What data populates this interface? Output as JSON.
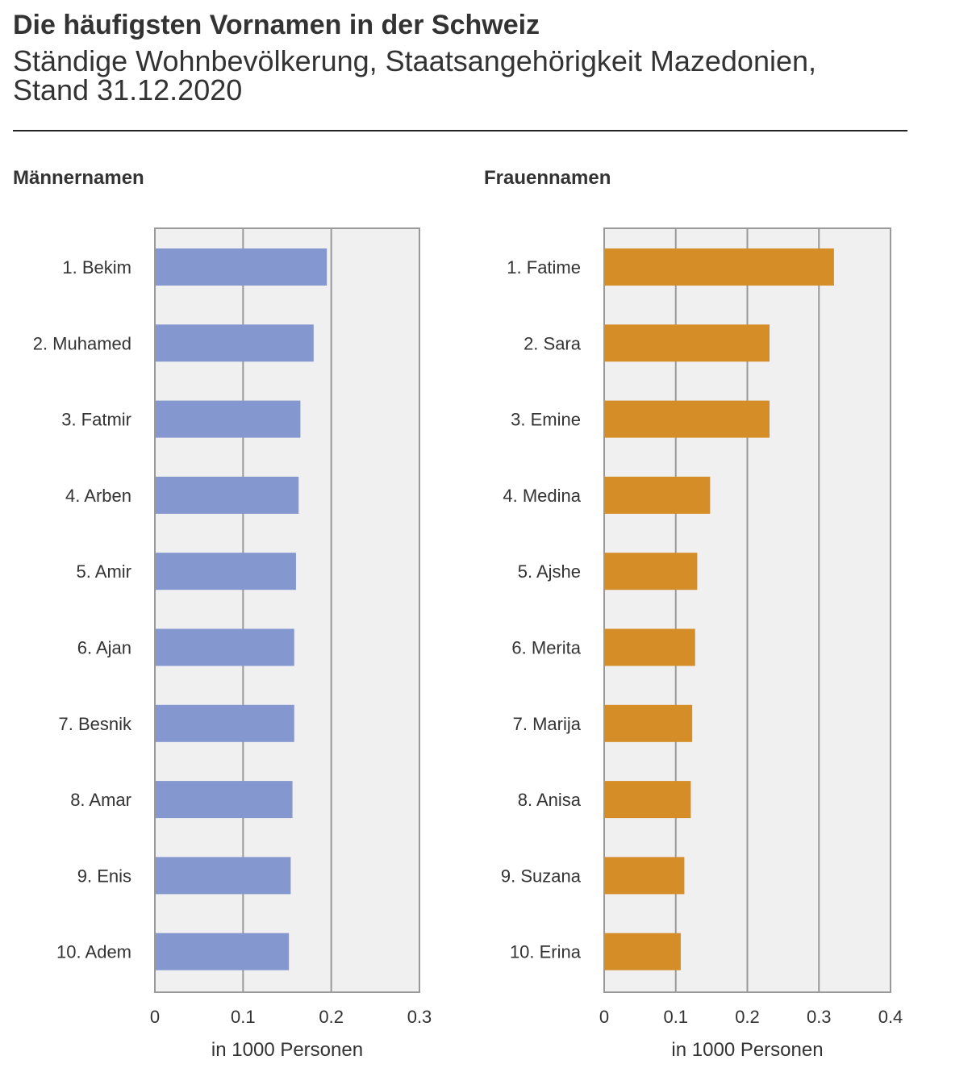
{
  "title": "Die häufigsten Vornamen in der Schweiz",
  "subtitle": "Ständige Wohnbevölkerung, Staatsangehörigkeit Mazedonien, Stand 31.12.2020",
  "chart_data": [
    {
      "type": "bar",
      "orientation": "horizontal",
      "title": "Männernamen",
      "categories": [
        "1. Bekim",
        "2. Muhamed",
        "3. Fatmir",
        "4. Arben",
        "5. Amir",
        "6. Ajan",
        "7. Besnik",
        "8. Amar",
        "9. Enis",
        "10. Adem"
      ],
      "values": [
        0.195,
        0.18,
        0.165,
        0.163,
        0.16,
        0.158,
        0.158,
        0.156,
        0.154,
        0.152
      ],
      "xlabel": "in 1000 Personen",
      "xlim": [
        0,
        0.3
      ],
      "xticks": [
        "0",
        "0.1",
        "0.2",
        "0.3"
      ],
      "grid": true,
      "color": "#8497cf"
    },
    {
      "type": "bar",
      "orientation": "horizontal",
      "title": "Frauennamen",
      "categories": [
        "1. Fatime",
        "2. Sara",
        "3. Emine",
        "4. Medina",
        "5. Ajshe",
        "6. Merita",
        "7. Marija",
        "8. Anisa",
        "9. Suzana",
        "10. Erina"
      ],
      "values": [
        0.321,
        0.231,
        0.231,
        0.148,
        0.13,
        0.127,
        0.123,
        0.121,
        0.112,
        0.107
      ],
      "xlabel": "in 1000 Personen",
      "xlim": [
        0,
        0.4
      ],
      "xticks": [
        "0",
        "0.1",
        "0.2",
        "0.3",
        "0.4"
      ],
      "grid": true,
      "color": "#d58d27"
    }
  ]
}
